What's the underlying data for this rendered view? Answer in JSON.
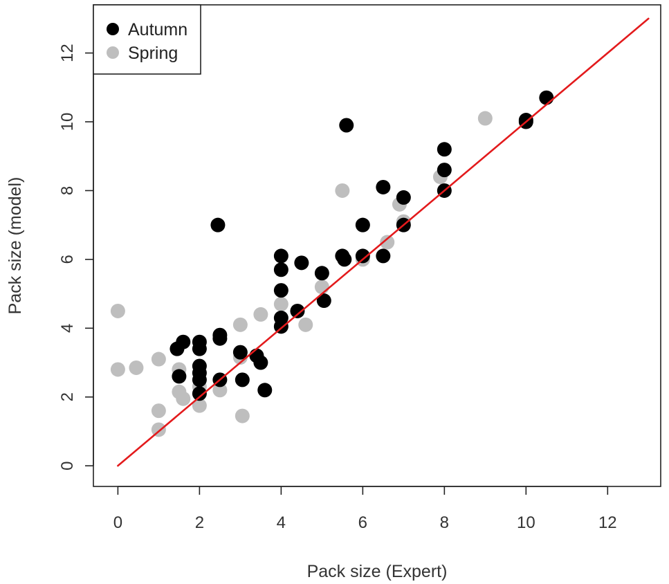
{
  "chart_data": {
    "type": "scatter",
    "xlabel": "Pack size (Expert)",
    "ylabel": "Pack size (model)",
    "xlim": [
      -0.6,
      13.3
    ],
    "ylim": [
      -0.6,
      13.4
    ],
    "xticks": [
      "0",
      "2",
      "4",
      "6",
      "8",
      "10",
      "12"
    ],
    "yticks": [
      "0",
      "2",
      "4",
      "6",
      "8",
      "10",
      "12"
    ],
    "legend_position": "top-left",
    "reference_line": {
      "from": [
        0,
        0
      ],
      "to": [
        13,
        13
      ],
      "color": "#e31a1c"
    },
    "series": [
      {
        "name": "Spring",
        "color": "#bebebe",
        "points": [
          [
            0,
            4.5
          ],
          [
            0,
            2.8
          ],
          [
            0.45,
            2.85
          ],
          [
            1,
            3.1
          ],
          [
            1,
            1.6
          ],
          [
            1,
            1.05
          ],
          [
            1.5,
            2.8
          ],
          [
            1.5,
            2.15
          ],
          [
            1.6,
            1.95
          ],
          [
            2,
            2.3
          ],
          [
            2,
            1.75
          ],
          [
            2.5,
            2.2
          ],
          [
            3,
            4.1
          ],
          [
            3,
            3.15
          ],
          [
            3.05,
            1.45
          ],
          [
            3.5,
            4.4
          ],
          [
            4,
            4.7
          ],
          [
            4.6,
            4.1
          ],
          [
            5,
            5.2
          ],
          [
            5.5,
            8.0
          ],
          [
            6,
            7.0
          ],
          [
            6,
            6.0
          ],
          [
            6.6,
            6.5
          ],
          [
            6.9,
            7.6
          ],
          [
            7,
            7.1
          ],
          [
            7.9,
            8.4
          ],
          [
            9,
            10.1
          ]
        ]
      },
      {
        "name": "Autumn",
        "color": "#000000",
        "points": [
          [
            1.45,
            3.4
          ],
          [
            1.5,
            2.6
          ],
          [
            1.6,
            3.6
          ],
          [
            2,
            3.6
          ],
          [
            2,
            3.4
          ],
          [
            2,
            2.9
          ],
          [
            2,
            2.7
          ],
          [
            2,
            2.5
          ],
          [
            2,
            2.1
          ],
          [
            2.45,
            7.0
          ],
          [
            2.5,
            2.5
          ],
          [
            2.5,
            3.8
          ],
          [
            2.5,
            3.7
          ],
          [
            3,
            3.3
          ],
          [
            3.05,
            2.5
          ],
          [
            3.4,
            3.2
          ],
          [
            3.5,
            3.0
          ],
          [
            3.6,
            2.2
          ],
          [
            4,
            6.1
          ],
          [
            4,
            5.7
          ],
          [
            4,
            5.1
          ],
          [
            4,
            4.3
          ],
          [
            4,
            4.05
          ],
          [
            4.4,
            4.5
          ],
          [
            4.5,
            5.9
          ],
          [
            5,
            5.6
          ],
          [
            5.05,
            4.8
          ],
          [
            5.5,
            6.1
          ],
          [
            5.55,
            6.0
          ],
          [
            5.6,
            9.9
          ],
          [
            6,
            7.0
          ],
          [
            6,
            6.1
          ],
          [
            6.5,
            6.1
          ],
          [
            6.5,
            8.1
          ],
          [
            7,
            7.8
          ],
          [
            7,
            7.0
          ],
          [
            8,
            9.2
          ],
          [
            8,
            8.6
          ],
          [
            8,
            8.0
          ],
          [
            10,
            10.05
          ],
          [
            10,
            10.0
          ],
          [
            10.5,
            10.7
          ]
        ]
      }
    ]
  },
  "legend": {
    "items": [
      {
        "label": "Autumn",
        "color": "#000000"
      },
      {
        "label": "Spring",
        "color": "#bebebe"
      }
    ]
  }
}
